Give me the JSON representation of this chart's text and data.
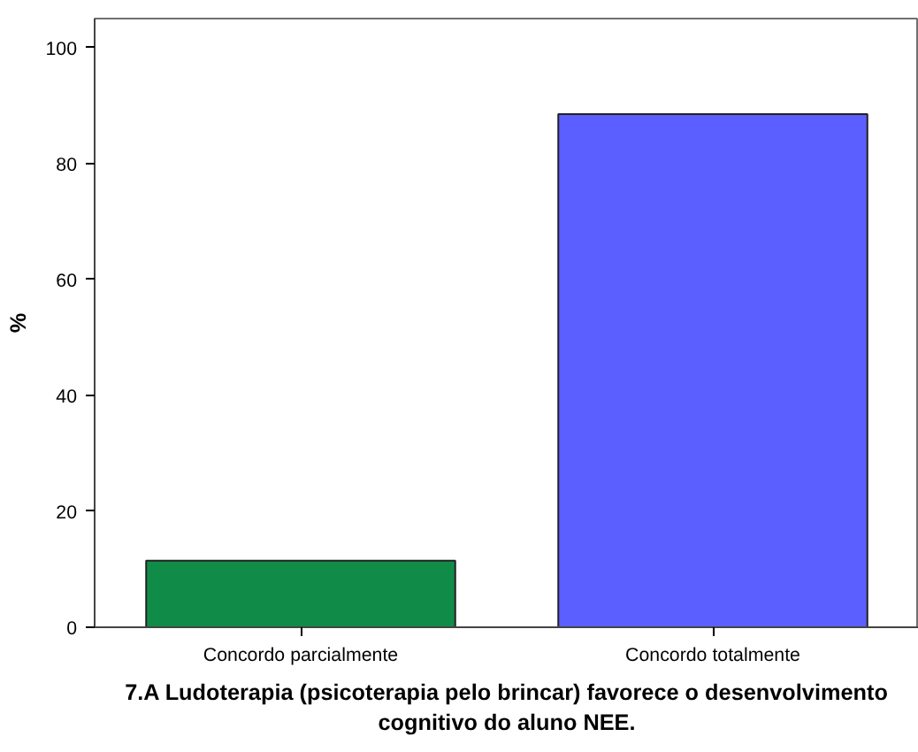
{
  "chart_data": {
    "type": "bar",
    "xlabel": "7.A Ludoterapia (psicoterapia pelo brincar) favorece o desenvolvimento cognitivo do aluno NEE.",
    "ylabel": "%",
    "categories": [
      "Concordo parcialmente",
      "Concordo totalmente"
    ],
    "values": [
      11.5,
      88.5
    ],
    "colors": [
      "#108c48",
      "#5b5fff"
    ],
    "ylim": [
      0,
      105
    ],
    "yticks": [
      0,
      20,
      40,
      60,
      80,
      100
    ],
    "grid": false
  }
}
